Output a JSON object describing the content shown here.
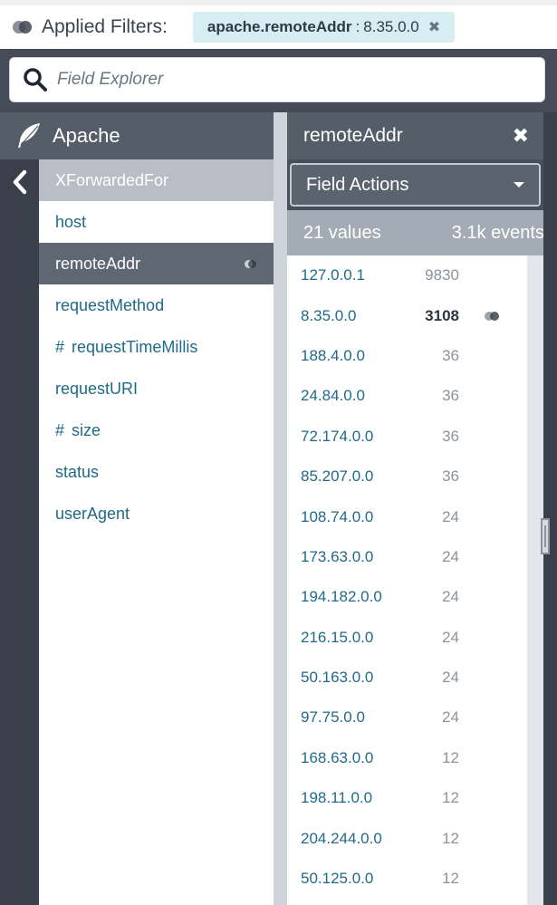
{
  "filters": {
    "label": "Applied Filters:",
    "chip": {
      "key": "apache.remoteAddr",
      "separator": ":",
      "value": "8.35.0.0",
      "remove": "✖"
    }
  },
  "search": {
    "placeholder": "Field Explorer"
  },
  "left": {
    "title": "Apache",
    "fields": [
      {
        "label": "XForwardedFor",
        "numeric": false,
        "state": "head"
      },
      {
        "label": "host",
        "numeric": false,
        "state": "normal"
      },
      {
        "label": "remoteAddr",
        "numeric": false,
        "state": "active"
      },
      {
        "label": "requestMethod",
        "numeric": false,
        "state": "normal"
      },
      {
        "label": "requestTimeMillis",
        "numeric": true,
        "state": "normal"
      },
      {
        "label": "requestURI",
        "numeric": false,
        "state": "normal"
      },
      {
        "label": "size",
        "numeric": true,
        "state": "normal"
      },
      {
        "label": "status",
        "numeric": false,
        "state": "normal"
      },
      {
        "label": "userAgent",
        "numeric": false,
        "state": "normal"
      }
    ],
    "hash_symbol": "#"
  },
  "right": {
    "title": "remoteAddr",
    "close": "✖",
    "actions_label": "Field Actions",
    "summary_values": "21 values",
    "summary_events": "3.1k events",
    "values": [
      {
        "ip": "127.0.0.1",
        "count": "9830"
      },
      {
        "ip": "8.35.0.0",
        "count": "3108",
        "selected": true
      },
      {
        "ip": "188.4.0.0",
        "count": "36"
      },
      {
        "ip": "24.84.0.0",
        "count": "36"
      },
      {
        "ip": "72.174.0.0",
        "count": "36"
      },
      {
        "ip": "85.207.0.0",
        "count": "36"
      },
      {
        "ip": "108.74.0.0",
        "count": "24"
      },
      {
        "ip": "173.63.0.0",
        "count": "24"
      },
      {
        "ip": "194.182.0.0",
        "count": "24"
      },
      {
        "ip": "216.15.0.0",
        "count": "24"
      },
      {
        "ip": "50.163.0.0",
        "count": "24"
      },
      {
        "ip": "97.75.0.0",
        "count": "24"
      },
      {
        "ip": "168.63.0.0",
        "count": "12"
      },
      {
        "ip": "198.11.0.0",
        "count": "12"
      },
      {
        "ip": "204.244.0.0",
        "count": "12"
      },
      {
        "ip": "50.125.0.0",
        "count": "12"
      }
    ]
  },
  "colors": {
    "link": "#216a8a",
    "header_bg": "#555d68",
    "chip_bg": "#d6eef1",
    "active_bg": "#5f6772"
  }
}
